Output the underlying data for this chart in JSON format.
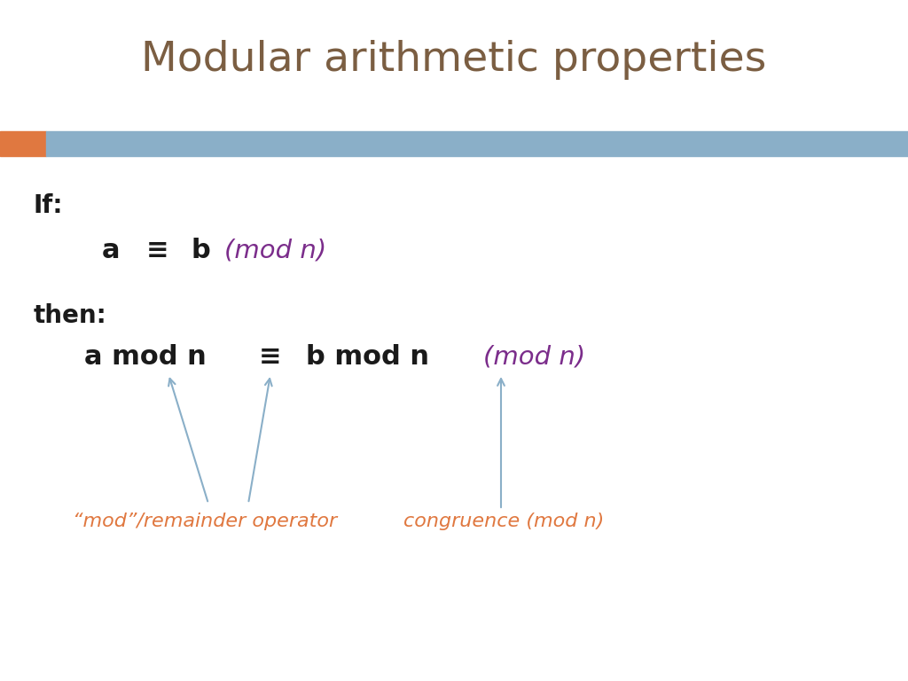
{
  "title": "Modular arithmetic properties",
  "title_color": "#7B5E42",
  "title_fontsize": 34,
  "bg_color": "#FFFFFF",
  "bar_orange_color": "#E07840",
  "bar_blue_color": "#8AAFC8",
  "if_label": "If:",
  "then_label": "then:",
  "arrow_color": "#8AAFC8",
  "mod_operator_label": "“mod”/remainder operator",
  "congruence_label": "congruence (mod n)",
  "annotation_color": "#E07840",
  "purple_color": "#7B2D8B",
  "black_text_color": "#1a1a1a"
}
